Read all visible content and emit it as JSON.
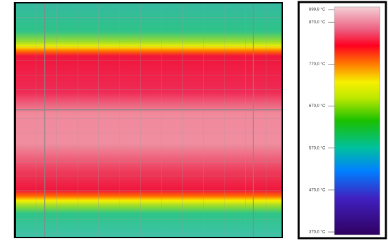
{
  "colorbar": {
    "lim": [
      370,
      899.9
    ],
    "ticks": [
      {
        "value": 899.9,
        "label": "899,9 °C"
      },
      {
        "value": 870,
        "label": "870,0 °C"
      },
      {
        "value": 770,
        "label": "770,0 °C"
      },
      {
        "value": 670,
        "label": "670,0 °C"
      },
      {
        "value": 570,
        "label": "570,0 °C"
      },
      {
        "value": 470,
        "label": "470,0 °C"
      },
      {
        "value": 370,
        "label": "370,0 °C"
      }
    ]
  }
}
